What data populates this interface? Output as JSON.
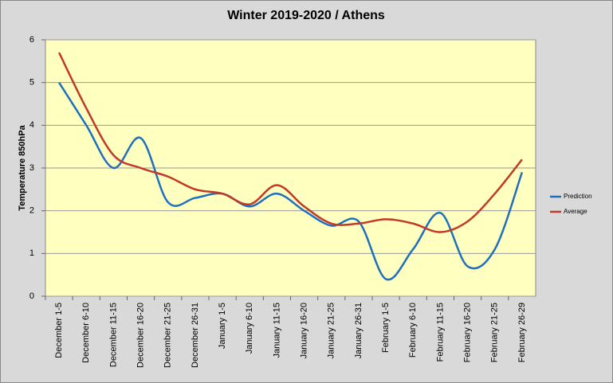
{
  "chart_data": {
    "type": "line",
    "title": "Winter 2019-2020 / Athens",
    "y_label": "Temperature 850hPa",
    "categories": [
      "December 1-5",
      "December 6-10",
      "December 11-15",
      "December 16-20",
      "December 21-25",
      "December 26-31",
      "January 1-5",
      "January 6-10",
      "January 11-15",
      "January 16-20",
      "January 21-25",
      "January 26-31",
      "February 1-5",
      "February 6-10",
      "February 11-15",
      "February 16-20",
      "February 21-25",
      "February 26-29"
    ],
    "series": [
      {
        "name": "Prediction",
        "color": "#1f6fbf",
        "values": [
          5.0,
          4.0,
          3.0,
          3.7,
          2.2,
          2.3,
          2.4,
          2.1,
          2.4,
          2.0,
          1.65,
          1.75,
          0.4,
          1.1,
          1.95,
          0.7,
          1.1,
          2.9
        ]
      },
      {
        "name": "Average",
        "color": "#c0392b",
        "values": [
          5.7,
          4.4,
          3.3,
          3.0,
          2.8,
          2.5,
          2.4,
          2.15,
          2.6,
          2.1,
          1.7,
          1.7,
          1.8,
          1.7,
          1.5,
          1.75,
          2.4,
          3.2
        ]
      }
    ],
    "ylim": [
      0,
      6
    ],
    "yticks": [
      0,
      1,
      2,
      3,
      4,
      5,
      6
    ],
    "grid": true,
    "smooth": true,
    "legend": "right"
  }
}
